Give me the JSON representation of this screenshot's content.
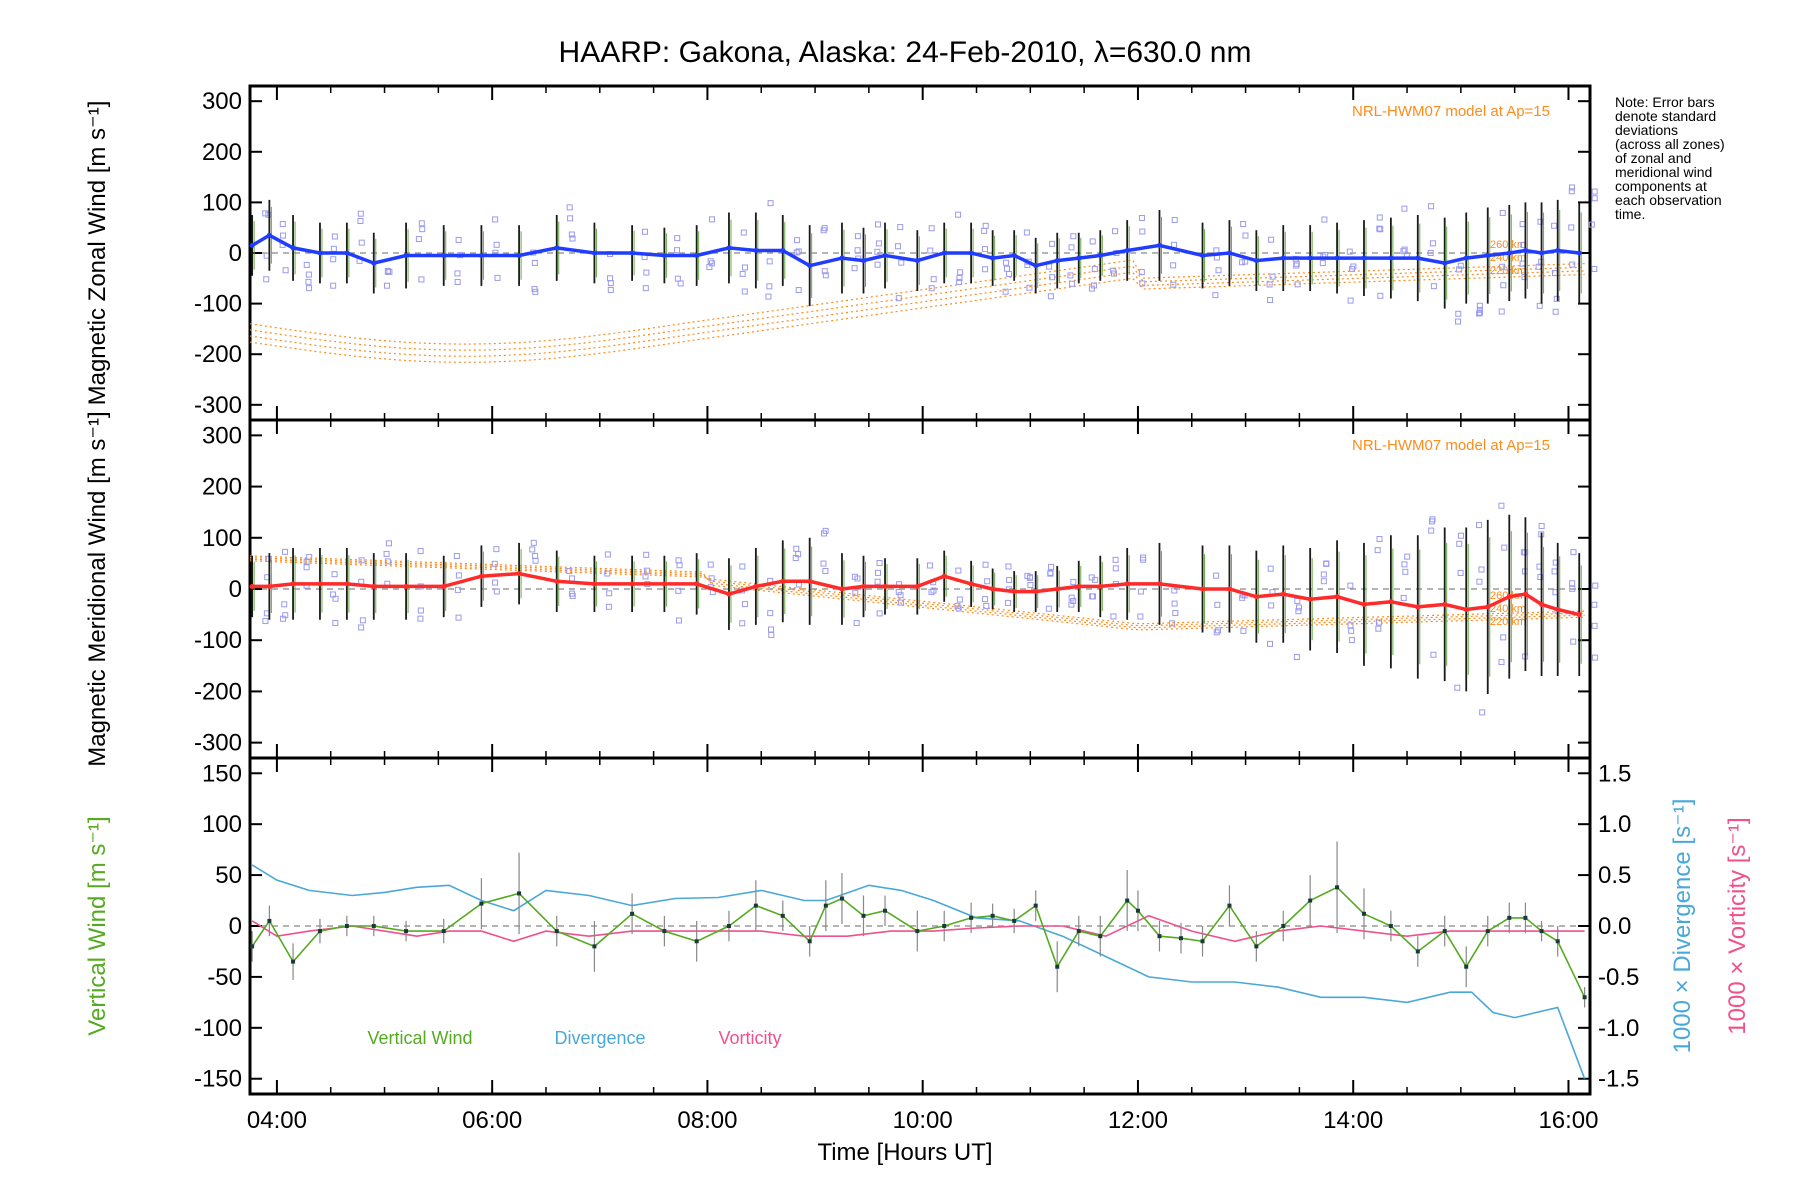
{
  "chart_data": {
    "type": "line",
    "title": "HAARP: Gakona,  Alaska: 24-Feb-2010, λ=630.0 nm",
    "note": [
      "Note: Error bars",
      "denote standard",
      "deviations",
      "(across all zones)",
      "of zonal and",
      "meridional wind",
      "components at",
      "each observation",
      "time."
    ],
    "x_label": "Time [Hours UT]",
    "x_ticks": [
      "04:00",
      "06:00",
      "08:00",
      "10:00",
      "12:00",
      "14:00",
      "16:00"
    ],
    "x_tick_hours": [
      4,
      6,
      8,
      10,
      12,
      14,
      16
    ],
    "x_range_hours": [
      3.75,
      16.2
    ],
    "times": [
      3.77,
      3.93,
      4.15,
      4.4,
      4.65,
      4.9,
      5.2,
      5.55,
      5.9,
      6.25,
      6.6,
      6.95,
      7.3,
      7.6,
      7.9,
      8.2,
      8.45,
      8.7,
      8.95,
      9.25,
      9.45,
      9.65,
      9.95,
      10.2,
      10.45,
      10.65,
      10.85,
      11.05,
      11.25,
      11.45,
      11.65,
      11.9,
      12.2,
      12.6,
      12.85,
      13.1,
      13.35,
      13.6,
      13.85,
      14.1,
      14.35,
      14.6,
      14.85,
      15.05,
      15.25,
      15.45,
      15.6,
      15.75,
      15.9,
      16.1
    ],
    "panels": [
      {
        "ylabel": "Magnetic Zonal Wind [m s⁻¹]",
        "ylabel_color": "#000000",
        "ylim": [
          -330,
          330
        ],
        "yticks": [
          300,
          200,
          100,
          0,
          -100,
          -200,
          -300
        ],
        "model_note": "NRL-HWM07 model at Ap=15",
        "alt_labels": [
          "260 km",
          "240 km",
          "220 km"
        ],
        "series": [
          {
            "name": "",
            "color": "#1f3cff",
            "values": [
              15,
              35,
              10,
              0,
              0,
              -20,
              -5,
              -5,
              -5,
              -5,
              10,
              0,
              0,
              -5,
              -5,
              10,
              5,
              5,
              -25,
              -10,
              -15,
              -5,
              -15,
              0,
              0,
              -10,
              -5,
              -25,
              -15,
              -10,
              -5,
              5,
              15,
              -5,
              0,
              -15,
              -10,
              -10,
              -10,
              -10,
              -10,
              -10,
              -20,
              -10,
              -5,
              0,
              5,
              0,
              5,
              0
            ],
            "error": [
              60,
              70,
              65,
              60,
              60,
              60,
              65,
              60,
              60,
              60,
              65,
              60,
              55,
              55,
              60,
              70,
              75,
              70,
              80,
              70,
              65,
              65,
              60,
              60,
              60,
              55,
              50,
              55,
              55,
              50,
              50,
              60,
              70,
              65,
              65,
              60,
              65,
              65,
              70,
              75,
              80,
              85,
              90,
              90,
              95,
              95,
              95,
              100,
              100,
              100
            ]
          }
        ]
      },
      {
        "ylabel": "Magnetic Meridional Wind [m s⁻¹]",
        "ylabel_color": "#000000",
        "ylim": [
          -330,
          330
        ],
        "yticks": [
          300,
          200,
          100,
          0,
          -100,
          -200,
          -300
        ],
        "model_note": "NRL-HWM07 model at Ap=15",
        "alt_labels": [
          "260 km",
          "240 km",
          "220 km"
        ],
        "series": [
          {
            "name": "",
            "color": "#ff2a2a",
            "values": [
              5,
              5,
              10,
              10,
              10,
              5,
              5,
              5,
              25,
              30,
              15,
              10,
              10,
              10,
              10,
              -10,
              5,
              15,
              15,
              0,
              5,
              5,
              5,
              25,
              10,
              0,
              -5,
              -5,
              0,
              5,
              5,
              10,
              10,
              0,
              0,
              -15,
              -10,
              -20,
              -15,
              -30,
              -25,
              -35,
              -30,
              -40,
              -35,
              -15,
              -10,
              -30,
              -40,
              -50
            ],
            "error": [
              60,
              65,
              70,
              70,
              70,
              65,
              65,
              60,
              60,
              60,
              60,
              55,
              55,
              55,
              60,
              70,
              75,
              80,
              85,
              70,
              60,
              55,
              55,
              50,
              45,
              40,
              40,
              40,
              45,
              50,
              60,
              70,
              80,
              85,
              85,
              90,
              95,
              100,
              110,
              120,
              130,
              140,
              150,
              160,
              170,
              160,
              150,
              140,
              130,
              120
            ]
          }
        ]
      },
      {
        "ylabel": "Vertical Wind [m s⁻¹]",
        "ylabel_color": "#55aa22",
        "ylim": [
          -165,
          165
        ],
        "yticks": [
          150,
          100,
          50,
          0,
          -50,
          -100,
          -150
        ],
        "right_axis_label_divergence": "1000 × Divergence [s⁻¹]",
        "right_axis_label_vorticity": "1000 × Vorticity [s⁻¹]",
        "right_ylim": [
          -1.65,
          1.65
        ],
        "right_yticks": [
          "1.5",
          "1.0",
          "0.5",
          "0.0",
          "-0.5",
          "-1.0",
          "-1.5"
        ],
        "right_ytick_values": [
          1.5,
          1.0,
          0.5,
          0.0,
          -0.5,
          -1.0,
          -1.5
        ],
        "legend": [
          "Vertical Wind",
          "Divergence",
          "Vorticity"
        ],
        "series": [
          {
            "name": "Vertical Wind",
            "color": "#55aa22",
            "x": [
              3.77,
              3.93,
              4.15,
              4.4,
              4.65,
              4.9,
              5.2,
              5.55,
              5.9,
              6.25,
              6.6,
              6.95,
              7.3,
              7.6,
              7.9,
              8.2,
              8.45,
              8.7,
              8.95,
              9.1,
              9.25,
              9.45,
              9.65,
              9.95,
              10.2,
              10.45,
              10.65,
              10.85,
              11.05,
              11.25,
              11.45,
              11.65,
              11.9,
              12.0,
              12.2,
              12.4,
              12.6,
              12.85,
              13.1,
              13.35,
              13.6,
              13.85,
              14.1,
              14.35,
              14.6,
              14.85,
              15.05,
              15.25,
              15.45,
              15.6,
              15.75,
              15.9,
              16.15
            ],
            "values": [
              -20,
              5,
              -35,
              -5,
              0,
              0,
              -5,
              -5,
              22,
              32,
              -5,
              -20,
              12,
              -5,
              -15,
              0,
              20,
              10,
              -15,
              20,
              27,
              10,
              15,
              -5,
              0,
              8,
              10,
              5,
              20,
              -40,
              -5,
              -10,
              25,
              15,
              -10,
              -12,
              -15,
              20,
              -20,
              0,
              25,
              38,
              12,
              0,
              -25,
              -5,
              -40,
              -5,
              8,
              8,
              -5,
              -15,
              -70
            ],
            "error": [
              15,
              15,
              18,
              12,
              10,
              10,
              10,
              12,
              25,
              40,
              15,
              25,
              20,
              15,
              20,
              15,
              25,
              15,
              15,
              25,
              25,
              20,
              15,
              20,
              15,
              15,
              12,
              12,
              15,
              25,
              15,
              20,
              30,
              20,
              15,
              15,
              15,
              20,
              15,
              15,
              25,
              45,
              25,
              15,
              15,
              15,
              20,
              15,
              15,
              15,
              10,
              15,
              10
            ]
          },
          {
            "name": "Divergence",
            "color": "#4aa8d8",
            "x": [
              3.77,
              4.0,
              4.3,
              4.7,
              5.0,
              5.3,
              5.6,
              5.9,
              6.2,
              6.5,
              6.9,
              7.3,
              7.7,
              8.1,
              8.5,
              8.9,
              9.1,
              9.5,
              9.8,
              10.1,
              10.5,
              10.9,
              11.3,
              11.7,
              12.1,
              12.5,
              12.9,
              13.3,
              13.7,
              14.1,
              14.5,
              14.9,
              15.1,
              15.3,
              15.5,
              15.7,
              15.9,
              16.15
            ],
            "values": [
              0.6,
              0.45,
              0.35,
              0.3,
              0.33,
              0.38,
              0.4,
              0.25,
              0.15,
              0.35,
              0.3,
              0.2,
              0.27,
              0.28,
              0.35,
              0.25,
              0.25,
              0.4,
              0.35,
              0.25,
              0.08,
              0.05,
              -0.1,
              -0.3,
              -0.5,
              -0.55,
              -0.55,
              -0.6,
              -0.7,
              -0.7,
              -0.75,
              -0.65,
              -0.65,
              -0.85,
              -0.9,
              -0.85,
              -0.8,
              -1.5
            ]
          },
          {
            "name": "Vorticity",
            "color": "#f0508c",
            "x": [
              3.77,
              4.0,
              4.3,
              4.7,
              5.0,
              5.3,
              5.6,
              5.9,
              6.2,
              6.5,
              6.9,
              7.3,
              7.7,
              8.1,
              8.5,
              8.9,
              9.3,
              9.7,
              10.1,
              10.5,
              10.9,
              11.3,
              11.7,
              12.1,
              12.5,
              12.9,
              13.3,
              13.7,
              14.1,
              14.5,
              14.9,
              15.3,
              15.7,
              16.15
            ],
            "values": [
              0.05,
              -0.1,
              -0.05,
              0.0,
              -0.05,
              -0.1,
              -0.05,
              -0.05,
              -0.15,
              -0.05,
              -0.1,
              -0.05,
              -0.05,
              -0.05,
              -0.05,
              -0.1,
              -0.1,
              -0.05,
              -0.05,
              -0.02,
              0.0,
              0.0,
              -0.1,
              0.1,
              -0.05,
              -0.15,
              -0.05,
              0.0,
              -0.05,
              -0.1,
              -0.05,
              -0.05,
              -0.05,
              -0.05
            ]
          }
        ]
      }
    ]
  }
}
